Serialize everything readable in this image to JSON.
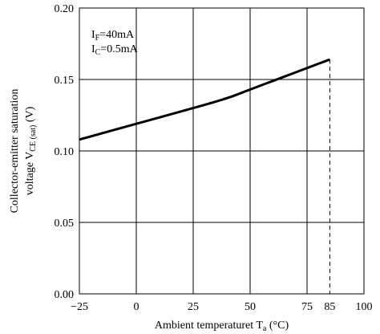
{
  "chart_data": {
    "type": "line",
    "title": "",
    "xlabel": "Ambient temperaturet T",
    "xlabel_sub": "a",
    "xlabel_unit": " (°C)",
    "ylabel_line1": "Collector-emitter saturation",
    "ylabel_line2_main": "voltage V",
    "ylabel_line2_sub": "CE (sat)",
    "ylabel_line2_unit": " (V)",
    "xlim": [
      -25,
      100
    ],
    "ylim": [
      0.0,
      0.2
    ],
    "x_ticks": [
      -25,
      0,
      25,
      50,
      75,
      85,
      100
    ],
    "x_tick_labels": [
      "−25",
      "0",
      "25",
      "50",
      "75",
      "85",
      "100"
    ],
    "y_ticks": [
      0.0,
      0.05,
      0.1,
      0.15,
      0.2
    ],
    "y_tick_labels": [
      "0.00",
      "0.05",
      "0.10",
      "0.15",
      "0.20"
    ],
    "grid": true,
    "annotations": [
      {
        "main": "I",
        "sub": "F",
        "rest": "=40mA"
      },
      {
        "main": "I",
        "sub": "C",
        "rest": "=0.5mA"
      }
    ],
    "series": [
      {
        "x": [
          -25,
          0,
          25,
          40,
          50,
          60,
          70,
          80,
          85
        ],
        "y": [
          0.108,
          0.119,
          0.13,
          0.137,
          0.143,
          0.149,
          0.155,
          0.161,
          0.164
        ]
      }
    ],
    "dashed_marker_x": 85
  }
}
